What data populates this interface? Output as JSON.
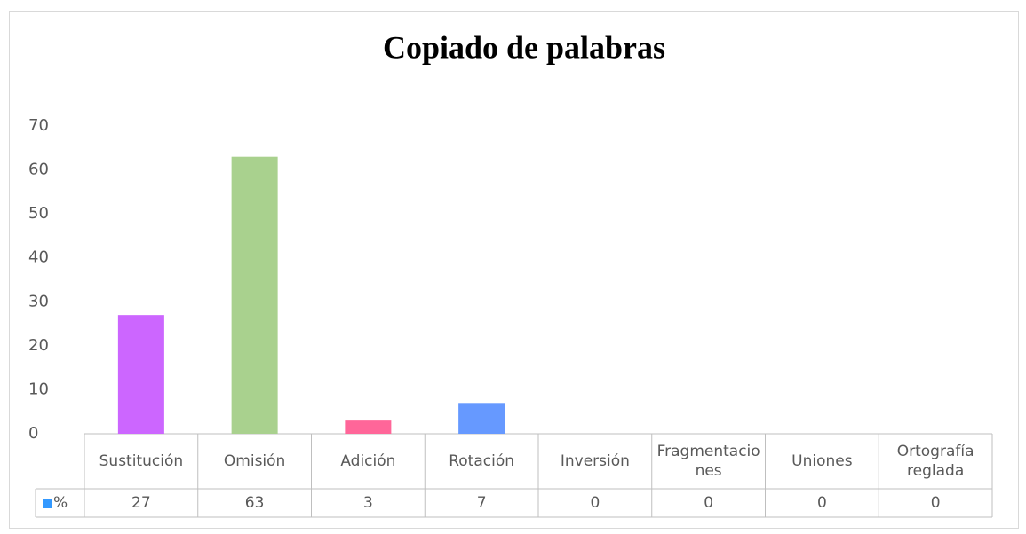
{
  "chart_data": {
    "type": "bar",
    "title": "Copiado de palabras",
    "categories": [
      "Sustitución",
      "Omisión",
      "Adición",
      "Rotación",
      "Inversión",
      "Fragmentaciones",
      "Uniones",
      "Ortografía reglada"
    ],
    "series": [
      {
        "name": "%",
        "color": "#3399ff",
        "values": [
          27,
          63,
          3,
          7,
          0,
          0,
          0,
          0
        ],
        "colors": [
          "#cc66ff",
          "#a9d18e",
          "#ff6699",
          "#6699ff",
          "#5b9bd5",
          "#5b9bd5",
          "#5b9bd5",
          "#5b9bd5"
        ]
      }
    ],
    "ylim": [
      0,
      70
    ],
    "yticks": [
      0,
      10,
      20,
      30,
      40,
      50,
      60,
      70
    ],
    "grid": false,
    "data_table": true
  }
}
